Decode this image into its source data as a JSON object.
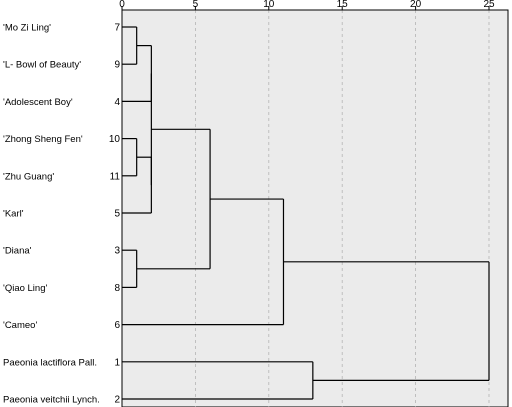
{
  "chart_data": {
    "type": "dendrogram",
    "orientation": "horizontal",
    "x_ticks": [
      0,
      5,
      10,
      15,
      20,
      25
    ],
    "xlim": [
      0,
      25
    ],
    "grid": true,
    "plot_background": "#ebebeb",
    "leaves": [
      {
        "label": "'Mo Zi Ling'",
        "case": "7"
      },
      {
        "label": "'L- Bowl of Beauty'",
        "case": "9"
      },
      {
        "label": "'Adolescent Boy'",
        "case": "4"
      },
      {
        "label": "'Zhong Sheng Fen'",
        "case": "10"
      },
      {
        "label": "'Zhu Guang'",
        "case": "11"
      },
      {
        "label": "'Karl'",
        "case": "5"
      },
      {
        "label": "'Diana'",
        "case": "3"
      },
      {
        "label": "'Qiao Ling'",
        "case": "8"
      },
      {
        "label": "'Cameo'",
        "case": "6"
      },
      {
        "label": "Paeonia lactiflora Pall.",
        "case": "1"
      },
      {
        "label": "Paeonia veitchii Lynch.",
        "case": "2"
      }
    ],
    "merges": [
      {
        "children": [
          "L0",
          "L1"
        ],
        "distance": 1
      },
      {
        "children": [
          "L3",
          "L4"
        ],
        "distance": 1
      },
      {
        "children": [
          "L6",
          "L7"
        ],
        "distance": 1
      },
      {
        "children": [
          "N0",
          "L2"
        ],
        "distance": 2
      },
      {
        "children": [
          "N1",
          "L5"
        ],
        "distance": 2
      },
      {
        "children": [
          "N3",
          "N4"
        ],
        "distance": 2
      },
      {
        "children": [
          "N5",
          "N2"
        ],
        "distance": 6
      },
      {
        "children": [
          "N6",
          "L8"
        ],
        "distance": 11
      },
      {
        "children": [
          "L9",
          "L10"
        ],
        "distance": 13
      },
      {
        "children": [
          "N7",
          "N8"
        ],
        "distance": 25
      }
    ]
  }
}
